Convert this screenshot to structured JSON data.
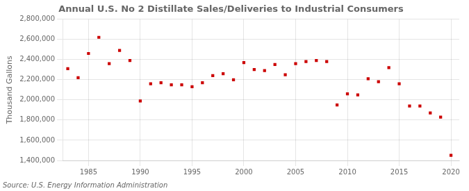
{
  "chart_data": {
    "type": "scatter",
    "title": "Annual U.S. No 2 Distillate Sales/Deliveries to Industrial Consumers",
    "ylabel": "Thousand Gallons",
    "annotations": [
      "Source: U.S. Energy Information Administration"
    ],
    "x": [
      1983,
      1984,
      1985,
      1986,
      1987,
      1988,
      1989,
      1990,
      1991,
      1992,
      1993,
      1994,
      1995,
      1996,
      1997,
      1998,
      1999,
      2000,
      2001,
      2002,
      2003,
      2004,
      2005,
      2006,
      2007,
      2008,
      2009,
      2010,
      2011,
      2012,
      2013,
      2014,
      2015,
      2016,
      2017,
      2018,
      2019,
      2020
    ],
    "values": [
      2310000,
      2220000,
      2460000,
      2620000,
      2360000,
      2490000,
      2390000,
      1990000,
      2160000,
      2170000,
      2150000,
      2150000,
      2130000,
      2170000,
      2240000,
      2260000,
      2200000,
      2370000,
      2300000,
      2290000,
      2350000,
      2250000,
      2360000,
      2380000,
      2390000,
      2380000,
      1950000,
      2060000,
      2050000,
      2210000,
      2180000,
      2320000,
      2160000,
      1940000,
      1940000,
      1870000,
      1830000,
      1450000
    ],
    "color": "#cc0000",
    "marker": "square",
    "grid": true,
    "xlim": [
      1982.5,
      2020.8
    ],
    "xticks": [
      1985,
      1990,
      1995,
      2000,
      2005,
      2010,
      2015,
      2020
    ],
    "ylim": [
      1400000,
      2800000
    ],
    "yticks": [
      {
        "value": 1400000,
        "label": "1,400,000"
      },
      {
        "value": 1600000,
        "label": "1,600,000"
      },
      {
        "value": 1800000,
        "label": "1,800,000"
      },
      {
        "value": 2000000,
        "label": "2,000,000"
      },
      {
        "value": 2200000,
        "label": "2,200,000"
      },
      {
        "value": 2400000,
        "label": "2,400,000"
      },
      {
        "value": 2600000,
        "label": "2,600,000"
      },
      {
        "value": 2800000,
        "label": "2,800,000"
      }
    ]
  }
}
